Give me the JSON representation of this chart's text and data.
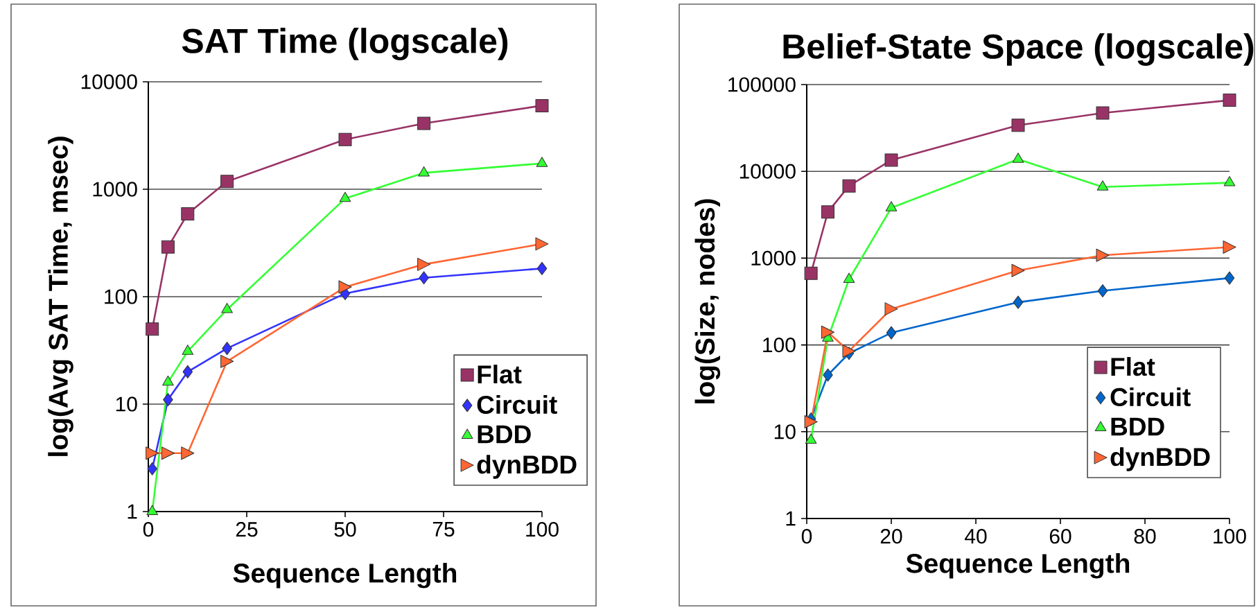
{
  "chart_data": [
    {
      "type": "line",
      "title": "SAT Time  (logscale)",
      "xlabel": "Sequence Length",
      "ylabel": "log(Avg SAT Time, msec)",
      "log": "y",
      "grid": "y",
      "legend": "bottom right",
      "xlim": [
        0,
        100
      ],
      "xticks": [
        0,
        25,
        50,
        75,
        100
      ],
      "ylim": [
        1,
        10000
      ],
      "yticks": [
        1,
        10,
        100,
        1000,
        10000
      ],
      "series": [
        {
          "name": "Flat",
          "color": "#993366",
          "marker": "square",
          "x": [
            1,
            5,
            10,
            20,
            50,
            70,
            100
          ],
          "values": [
            50,
            290,
            590,
            1180,
            2900,
            4100,
            6000
          ]
        },
        {
          "name": "Circuit",
          "color": "#3333ff",
          "marker": "diamond",
          "x": [
            1,
            5,
            10,
            20,
            50,
            70,
            100
          ],
          "values": [
            2.5,
            11,
            20,
            33,
            107,
            150,
            183
          ]
        },
        {
          "name": "BDD",
          "color": "#33ff33",
          "marker": "triangle",
          "x": [
            1,
            5,
            10,
            20,
            50,
            70,
            100
          ],
          "values": [
            1,
            16,
            31,
            76,
            820,
            1420,
            1740
          ]
        },
        {
          "name": "dynBDD",
          "color": "#ff6633",
          "marker": "triangle",
          "x": [
            1,
            5,
            10,
            20,
            50,
            70,
            100
          ],
          "values": [
            3.5,
            3.5,
            3.5,
            25,
            123,
            200,
            310
          ]
        }
      ]
    },
    {
      "type": "line",
      "title": "Belief-State Space (logscale)",
      "xlabel": "Sequence Length",
      "ylabel": "log(Size, nodes)",
      "log": "y",
      "grid": "y",
      "legend": "bottom right",
      "xlim": [
        0,
        100
      ],
      "xticks": [
        0,
        20,
        40,
        60,
        80,
        100
      ],
      "ylim": [
        1,
        100000
      ],
      "yticks": [
        1,
        10,
        100,
        1000,
        10000,
        100000
      ],
      "series": [
        {
          "name": "Flat",
          "color": "#993366",
          "marker": "square",
          "x": [
            1,
            5,
            10,
            20,
            50,
            70,
            100
          ],
          "values": [
            670,
            3400,
            6800,
            13500,
            34000,
            47000,
            66000
          ]
        },
        {
          "name": "Circuit",
          "color": "#0066cc",
          "marker": "diamond",
          "x": [
            1,
            5,
            10,
            20,
            50,
            70,
            100
          ],
          "values": [
            14,
            45,
            80,
            138,
            310,
            420,
            590
          ]
        },
        {
          "name": "BDD",
          "color": "#33ff33",
          "marker": "triangle",
          "x": [
            1,
            5,
            10,
            20,
            50,
            70,
            100
          ],
          "values": [
            8,
            120,
            570,
            3800,
            13800,
            6600,
            7400
          ]
        },
        {
          "name": "dynBDD",
          "color": "#ff6633",
          "marker": "triangle",
          "x": [
            1,
            5,
            10,
            20,
            50,
            70,
            100
          ],
          "values": [
            13,
            140,
            85,
            260,
            720,
            1080,
            1340
          ]
        }
      ]
    }
  ]
}
